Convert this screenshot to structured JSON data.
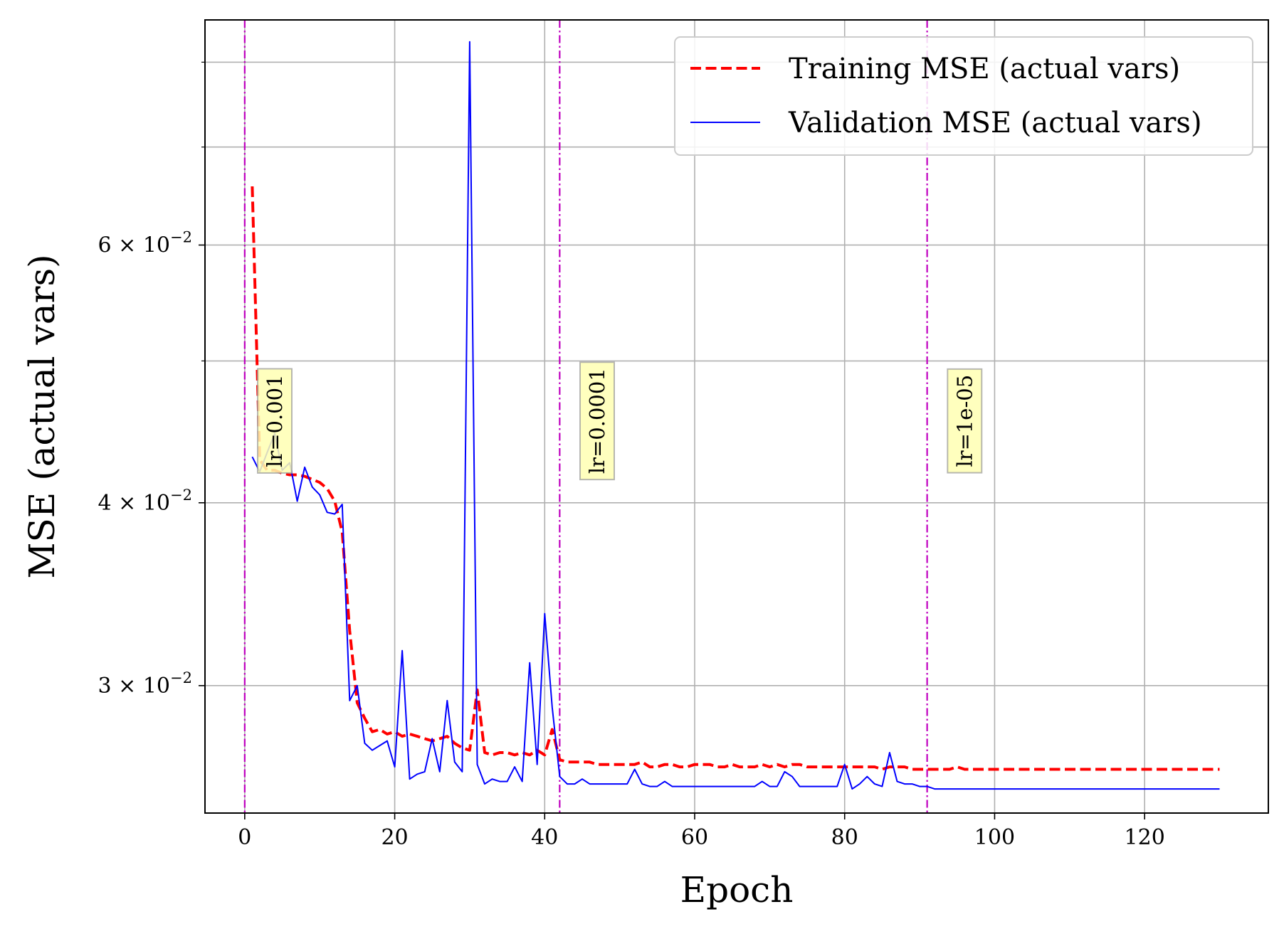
{
  "chart_data": {
    "type": "line",
    "xlabel": "Epoch",
    "ylabel": "MSE (actual vars)",
    "yscale": "log",
    "xlim": [
      -5.3,
      136.5
    ],
    "ylim": [
      0.02455,
      0.0855
    ],
    "grid": true,
    "legend_position": "top-right",
    "x_ticks": [
      0,
      20,
      40,
      60,
      80,
      100,
      120
    ],
    "x_tick_labels": [
      "0",
      "20",
      "40",
      "60",
      "80",
      "100",
      "120"
    ],
    "y_major_ticks": [
      0.03,
      0.04,
      0.06
    ],
    "y_major_labels": [
      {
        "mantissa": "3",
        "exponent": "−2"
      },
      {
        "mantissa": "4",
        "exponent": "−2"
      },
      {
        "mantissa": "6",
        "exponent": "−2"
      }
    ],
    "y_minor_ticks": [
      0.05,
      0.07,
      0.08
    ],
    "series": [
      {
        "name": "Training MSE (actual vars)",
        "color": "#ff0000",
        "style": "dashed",
        "x": [
          1,
          2,
          3,
          4,
          5,
          6,
          7,
          8,
          9,
          10,
          11,
          12,
          13,
          14,
          15,
          16,
          17,
          18,
          19,
          20,
          21,
          22,
          23,
          24,
          25,
          26,
          27,
          28,
          29,
          30,
          31,
          32,
          33,
          34,
          35,
          36,
          37,
          38,
          39,
          40,
          41,
          42,
          43,
          44,
          45,
          46,
          47,
          48,
          49,
          50,
          51,
          52,
          53,
          54,
          55,
          56,
          57,
          58,
          59,
          60,
          61,
          62,
          63,
          64,
          65,
          66,
          67,
          68,
          69,
          70,
          71,
          72,
          73,
          74,
          75,
          76,
          77,
          78,
          79,
          80,
          81,
          82,
          83,
          84,
          85,
          86,
          87,
          88,
          89,
          90,
          91,
          92,
          93,
          94,
          95,
          96,
          97,
          98,
          99,
          100,
          101,
          102,
          103,
          104,
          105,
          106,
          107,
          108,
          109,
          110,
          111,
          112,
          113,
          114,
          115,
          116,
          117,
          118,
          119,
          120,
          121,
          122,
          123,
          124,
          125,
          126,
          127,
          128,
          129,
          130
        ],
        "y": [
          0.0658,
          0.0428,
          0.0421,
          0.0421,
          0.0419,
          0.0418,
          0.0418,
          0.0417,
          0.0415,
          0.0413,
          0.0409,
          0.0401,
          0.0382,
          0.0327,
          0.0292,
          0.0285,
          0.0279,
          0.028,
          0.0278,
          0.0279,
          0.0277,
          0.0278,
          0.0277,
          0.0276,
          0.0275,
          0.0276,
          0.0277,
          0.0274,
          0.0272,
          0.0271,
          0.0298,
          0.027,
          0.0269,
          0.027,
          0.027,
          0.0269,
          0.027,
          0.0269,
          0.0271,
          0.0269,
          0.028,
          0.0267,
          0.0266,
          0.0266,
          0.0266,
          0.0266,
          0.0265,
          0.0265,
          0.0265,
          0.0265,
          0.0265,
          0.0265,
          0.0266,
          0.0264,
          0.0264,
          0.0265,
          0.0265,
          0.0264,
          0.0264,
          0.0265,
          0.0265,
          0.0265,
          0.0264,
          0.0264,
          0.0265,
          0.0264,
          0.0264,
          0.0264,
          0.0265,
          0.0264,
          0.0265,
          0.0264,
          0.0265,
          0.0265,
          0.0264,
          0.0264,
          0.0264,
          0.0264,
          0.0264,
          0.0264,
          0.0264,
          0.0264,
          0.0264,
          0.0264,
          0.0263,
          0.0264,
          0.0264,
          0.0264,
          0.0263,
          0.0263,
          0.0263,
          0.0263,
          0.0263,
          0.0263,
          0.0264,
          0.0263,
          0.0263,
          0.0263,
          0.0263,
          0.0263,
          0.0263,
          0.0263,
          0.0263,
          0.0263,
          0.0263,
          0.0263,
          0.0263,
          0.0263,
          0.0263,
          0.0263,
          0.0263,
          0.0263,
          0.0263,
          0.0263,
          0.0263,
          0.0263,
          0.0263,
          0.0263,
          0.0263,
          0.0263,
          0.0263,
          0.0263,
          0.0263,
          0.0263,
          0.0263,
          0.0263,
          0.0263,
          0.0263,
          0.0263,
          0.0263
        ]
      },
      {
        "name": "Validation MSE (actual vars)",
        "color": "#0000ff",
        "style": "solid",
        "x": [
          1,
          2,
          3,
          4,
          5,
          6,
          7,
          8,
          9,
          10,
          11,
          12,
          13,
          14,
          15,
          16,
          17,
          18,
          19,
          20,
          21,
          22,
          23,
          24,
          25,
          26,
          27,
          28,
          29,
          30,
          31,
          32,
          33,
          34,
          35,
          36,
          37,
          38,
          39,
          40,
          41,
          42,
          43,
          44,
          45,
          46,
          47,
          48,
          49,
          50,
          51,
          52,
          53,
          54,
          55,
          56,
          57,
          58,
          59,
          60,
          61,
          62,
          63,
          64,
          65,
          66,
          67,
          68,
          69,
          70,
          71,
          72,
          73,
          74,
          75,
          76,
          77,
          78,
          79,
          80,
          81,
          82,
          83,
          84,
          85,
          86,
          87,
          88,
          89,
          90,
          91,
          92,
          93,
          94,
          95,
          96,
          97,
          98,
          99,
          100,
          101,
          102,
          103,
          104,
          105,
          106,
          107,
          108,
          109,
          110,
          111,
          112,
          113,
          114,
          115,
          116,
          117,
          118,
          119,
          120,
          121,
          122,
          123,
          124,
          125,
          126,
          127,
          128,
          129,
          130
        ],
        "y": [
          0.043,
          0.042,
          0.0433,
          0.0446,
          0.0421,
          0.0426,
          0.0401,
          0.0423,
          0.041,
          0.0405,
          0.0394,
          0.0393,
          0.0399,
          0.0293,
          0.03,
          0.0274,
          0.0271,
          0.0273,
          0.0275,
          0.0264,
          0.0317,
          0.0259,
          0.0261,
          0.0262,
          0.0276,
          0.0262,
          0.0293,
          0.0266,
          0.0262,
          0.0826,
          0.0265,
          0.0257,
          0.0259,
          0.0258,
          0.0258,
          0.0264,
          0.0258,
          0.0311,
          0.0265,
          0.0336,
          0.029,
          0.026,
          0.0257,
          0.0257,
          0.0259,
          0.0257,
          0.0257,
          0.0257,
          0.0257,
          0.0257,
          0.0257,
          0.0263,
          0.0257,
          0.0256,
          0.0256,
          0.0258,
          0.0256,
          0.0256,
          0.0256,
          0.0256,
          0.0256,
          0.0256,
          0.0256,
          0.0256,
          0.0256,
          0.0256,
          0.0256,
          0.0256,
          0.0258,
          0.0256,
          0.0256,
          0.0262,
          0.026,
          0.0256,
          0.0256,
          0.0256,
          0.0256,
          0.0256,
          0.0256,
          0.0265,
          0.0255,
          0.0257,
          0.026,
          0.0257,
          0.0256,
          0.027,
          0.0258,
          0.0257,
          0.0257,
          0.0256,
          0.0256,
          0.0255,
          0.0255,
          0.0255,
          0.0255,
          0.0255,
          0.0255,
          0.0255,
          0.0255,
          0.0255,
          0.0255,
          0.0255,
          0.0255,
          0.0255,
          0.0255,
          0.0255,
          0.0255,
          0.0255,
          0.0255,
          0.0255,
          0.0255,
          0.0255,
          0.0255,
          0.0255,
          0.0255,
          0.0255,
          0.0255,
          0.0255,
          0.0255,
          0.0255,
          0.0255,
          0.0255,
          0.0255,
          0.0255,
          0.0255,
          0.0255,
          0.0255,
          0.0255,
          0.0255,
          0.0255
        ]
      }
    ],
    "vlines": [
      {
        "x": 0,
        "color": "#bf00bf",
        "label": ""
      },
      {
        "x": 42,
        "color": "#bf00bf",
        "label": "lr=0.0001"
      },
      {
        "x": 91,
        "color": "#bf00bf",
        "label": "lr=1e-05"
      }
    ],
    "annotations": [
      {
        "text": "lr=0.001",
        "x": 4,
        "y": 0.0455
      },
      {
        "text": "lr=0.0001",
        "x": 47,
        "y": 0.0455
      },
      {
        "text": "lr=1e-05",
        "x": 96,
        "y": 0.0455
      }
    ],
    "annotation_box_color": "#ffffb3"
  }
}
